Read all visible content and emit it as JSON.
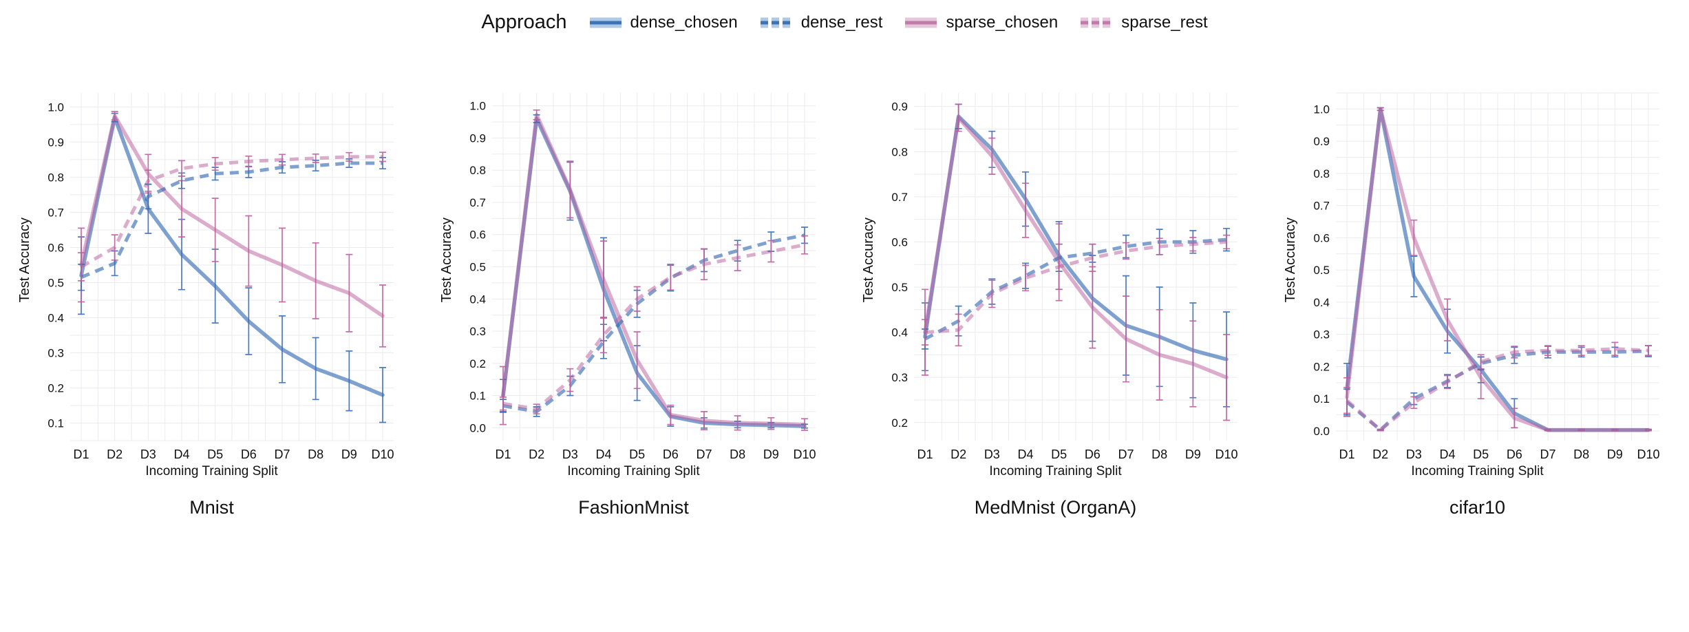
{
  "page": {
    "background": "#ffffff"
  },
  "legend": {
    "title": "Approach",
    "items": [
      {
        "label": "dense_chosen",
        "style": "solid",
        "color": "blue"
      },
      {
        "label": "dense_rest",
        "style": "dashed",
        "color": "blue"
      },
      {
        "label": "sparse_chosen",
        "style": "solid",
        "color": "pink"
      },
      {
        "label": "sparse_rest",
        "style": "dashed",
        "color": "pink"
      }
    ]
  },
  "colors": {
    "blue": {
      "line": "#3068B2",
      "line_opacity": 0.62,
      "band": "#AEC9E5",
      "center": "#3E72B6",
      "error": "#3A6EB5"
    },
    "pink": {
      "line": "#BC5F9E",
      "line_opacity": 0.52,
      "band": "#E4C7DA",
      "center": "#C27BA8",
      "error": "#BC5F9B"
    },
    "grid": "#EBEBEF",
    "text": "#111111"
  },
  "chart_data": [
    {
      "type": "line",
      "title": "Mnist",
      "xlabel": "Incoming Training Split",
      "ylabel": "Test Accuracy",
      "categories": [
        "D1",
        "D2",
        "D3",
        "D4",
        "D5",
        "D6",
        "D7",
        "D8",
        "D9",
        "D10"
      ],
      "ylim": [
        0.05,
        1.04
      ],
      "ytick_min": 0.1,
      "ytick_max": 1.0,
      "ytick_step": 0.1,
      "minor_step": 0.05,
      "grid": true,
      "series": [
        {
          "name": "dense_chosen",
          "style": "solid",
          "color": "blue",
          "values": [
            0.52,
            0.97,
            0.71,
            0.58,
            0.49,
            0.39,
            0.31,
            0.255,
            0.22,
            0.18
          ],
          "errors": [
            0.11,
            0.012,
            0.07,
            0.1,
            0.105,
            0.095,
            0.095,
            0.088,
            0.085,
            0.078
          ]
        },
        {
          "name": "sparse_chosen",
          "style": "solid",
          "color": "pink",
          "values": [
            0.55,
            0.975,
            0.81,
            0.71,
            0.65,
            0.59,
            0.55,
            0.505,
            0.47,
            0.405
          ],
          "errors": [
            0.105,
            0.012,
            0.055,
            0.08,
            0.09,
            0.1,
            0.105,
            0.108,
            0.11,
            0.088
          ]
        },
        {
          "name": "dense_rest",
          "style": "dashed",
          "color": "blue",
          "values": [
            0.515,
            0.555,
            0.745,
            0.79,
            0.81,
            0.815,
            0.828,
            0.833,
            0.84,
            0.84
          ],
          "errors": [
            0.037,
            0.035,
            0.035,
            0.022,
            0.018,
            0.016,
            0.016,
            0.015,
            0.012,
            0.016
          ]
        },
        {
          "name": "sparse_rest",
          "style": "dashed",
          "color": "pink",
          "values": [
            0.545,
            0.6,
            0.79,
            0.825,
            0.838,
            0.845,
            0.85,
            0.854,
            0.858,
            0.858
          ],
          "errors": [
            0.04,
            0.036,
            0.03,
            0.022,
            0.018,
            0.015,
            0.015,
            0.012,
            0.012,
            0.013
          ]
        }
      ]
    },
    {
      "type": "line",
      "title": "FashionMnist",
      "xlabel": "Incoming Training Split",
      "ylabel": "Test Accuracy",
      "categories": [
        "D1",
        "D2",
        "D3",
        "D4",
        "D5",
        "D6",
        "D7",
        "D8",
        "D9",
        "D10"
      ],
      "ylim": [
        -0.04,
        1.04
      ],
      "ytick_min": 0.0,
      "ytick_max": 1.0,
      "ytick_step": 0.1,
      "minor_step": 0.05,
      "grid": true,
      "series": [
        {
          "name": "dense_chosen",
          "style": "solid",
          "color": "blue",
          "values": [
            0.1,
            0.96,
            0.735,
            0.43,
            0.17,
            0.035,
            0.015,
            0.01,
            0.008,
            0.005
          ],
          "errors": [
            0.05,
            0.012,
            0.09,
            0.16,
            0.085,
            0.03,
            0.016,
            0.01,
            0.008,
            0.006
          ]
        },
        {
          "name": "sparse_chosen",
          "style": "solid",
          "color": "pink",
          "values": [
            0.1,
            0.972,
            0.74,
            0.46,
            0.21,
            0.04,
            0.022,
            0.015,
            0.013,
            0.01
          ],
          "errors": [
            0.09,
            0.015,
            0.088,
            0.12,
            0.088,
            0.03,
            0.028,
            0.022,
            0.018,
            0.018
          ]
        },
        {
          "name": "dense_rest",
          "style": "dashed",
          "color": "blue",
          "values": [
            0.068,
            0.05,
            0.13,
            0.268,
            0.385,
            0.465,
            0.52,
            0.55,
            0.578,
            0.598
          ],
          "errors": [
            0.02,
            0.015,
            0.03,
            0.053,
            0.042,
            0.04,
            0.035,
            0.032,
            0.03,
            0.025
          ]
        },
        {
          "name": "sparse_rest",
          "style": "dashed",
          "color": "pink",
          "values": [
            0.075,
            0.058,
            0.148,
            0.288,
            0.4,
            0.468,
            0.508,
            0.528,
            0.548,
            0.568
          ],
          "errors": [
            0.02,
            0.015,
            0.035,
            0.055,
            0.038,
            0.04,
            0.048,
            0.04,
            0.033,
            0.028
          ]
        }
      ]
    },
    {
      "type": "line",
      "title": "MedMnist (OrganA)",
      "xlabel": "Incoming Training Split",
      "ylabel": "Test Accuracy",
      "categories": [
        "D1",
        "D2",
        "D3",
        "D4",
        "D5",
        "D6",
        "D7",
        "D8",
        "D9",
        "D10"
      ],
      "ylim": [
        0.16,
        0.93
      ],
      "ytick_min": 0.2,
      "ytick_max": 0.9,
      "ytick_step": 0.1,
      "minor_step": 0.05,
      "grid": true,
      "series": [
        {
          "name": "dense_chosen",
          "style": "solid",
          "color": "blue",
          "values": [
            0.39,
            0.878,
            0.805,
            0.695,
            0.57,
            0.475,
            0.415,
            0.39,
            0.36,
            0.34
          ],
          "errors": [
            0.075,
            0.027,
            0.04,
            0.06,
            0.075,
            0.095,
            0.11,
            0.11,
            0.105,
            0.105
          ]
        },
        {
          "name": "sparse_chosen",
          "style": "solid",
          "color": "pink",
          "values": [
            0.4,
            0.875,
            0.79,
            0.67,
            0.555,
            0.455,
            0.385,
            0.35,
            0.33,
            0.3
          ],
          "errors": [
            0.095,
            0.03,
            0.04,
            0.06,
            0.085,
            0.09,
            0.095,
            0.1,
            0.095,
            0.095
          ]
        },
        {
          "name": "dense_rest",
          "style": "dashed",
          "color": "blue",
          "values": [
            0.385,
            0.425,
            0.49,
            0.525,
            0.565,
            0.575,
            0.59,
            0.6,
            0.6,
            0.605
          ],
          "errors": [
            0.022,
            0.033,
            0.028,
            0.028,
            0.03,
            0.02,
            0.025,
            0.028,
            0.025,
            0.025
          ]
        },
        {
          "name": "sparse_rest",
          "style": "dashed",
          "color": "pink",
          "values": [
            0.4,
            0.405,
            0.485,
            0.52,
            0.545,
            0.565,
            0.58,
            0.59,
            0.595,
            0.6
          ],
          "errors": [
            0.028,
            0.035,
            0.03,
            0.028,
            0.05,
            0.03,
            0.018,
            0.018,
            0.015,
            0.015
          ]
        }
      ]
    },
    {
      "type": "line",
      "title": "cifar10",
      "xlabel": "Incoming Training Split",
      "ylabel": "Test Accuracy",
      "categories": [
        "D1",
        "D2",
        "D3",
        "D4",
        "D5",
        "D6",
        "D7",
        "D8",
        "D9",
        "D10"
      ],
      "ylim": [
        -0.03,
        1.05
      ],
      "ytick_min": 0.0,
      "ytick_max": 1.0,
      "ytick_step": 0.1,
      "minor_step": 0.05,
      "grid": true,
      "series": [
        {
          "name": "dense_chosen",
          "style": "solid",
          "color": "blue",
          "values": [
            0.13,
            1.0,
            0.48,
            0.31,
            0.19,
            0.055,
            0.003,
            0.003,
            0.003,
            0.003
          ],
          "errors": [
            0.08,
            0.004,
            0.063,
            0.068,
            0.04,
            0.045,
            0.002,
            0.002,
            0.002,
            0.002
          ]
        },
        {
          "name": "sparse_chosen",
          "style": "solid",
          "color": "pink",
          "values": [
            0.105,
            1.0,
            0.6,
            0.345,
            0.165,
            0.04,
            0.003,
            0.003,
            0.003,
            0.003
          ],
          "errors": [
            0.06,
            0.004,
            0.055,
            0.065,
            0.065,
            0.03,
            0.002,
            0.002,
            0.002,
            0.002
          ]
        },
        {
          "name": "dense_rest",
          "style": "dashed",
          "color": "blue",
          "values": [
            0.09,
            0.003,
            0.1,
            0.155,
            0.21,
            0.235,
            0.245,
            0.245,
            0.245,
            0.248
          ],
          "errors": [
            0.04,
            0.002,
            0.018,
            0.02,
            0.02,
            0.025,
            0.018,
            0.015,
            0.015,
            0.017
          ]
        },
        {
          "name": "sparse_rest",
          "style": "dashed",
          "color": "pink",
          "values": [
            0.095,
            0.003,
            0.088,
            0.152,
            0.215,
            0.245,
            0.25,
            0.25,
            0.255,
            0.25
          ],
          "errors": [
            0.04,
            0.002,
            0.018,
            0.02,
            0.022,
            0.018,
            0.015,
            0.015,
            0.02,
            0.015
          ]
        }
      ]
    }
  ]
}
